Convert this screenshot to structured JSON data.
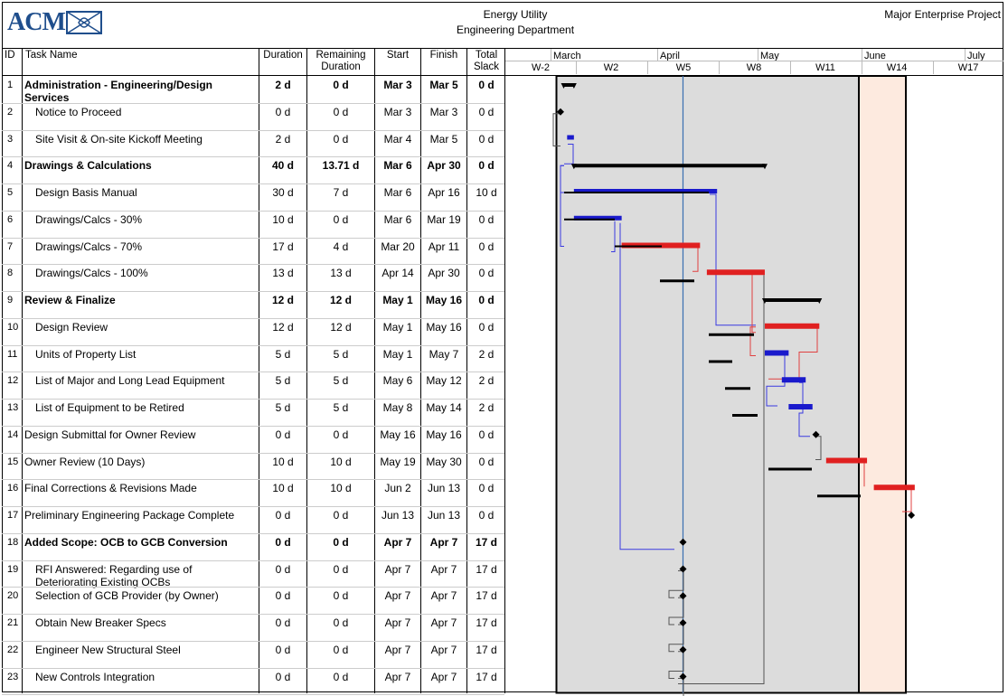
{
  "header": {
    "logo_text": "ACM",
    "title_line1": "Energy Utility",
    "title_line2": "Engineering Department",
    "project": "Major Enterprise Project"
  },
  "columns": {
    "id": "ID",
    "task_name": "Task Name",
    "duration": "Duration",
    "remaining_duration": "Remaining Duration",
    "start": "Start",
    "finish": "Finish",
    "total_slack": "Total Slack"
  },
  "timeline": {
    "months": [
      "March",
      "April",
      "May",
      "June",
      "July"
    ],
    "weeks": [
      "W-2",
      "W2",
      "W5",
      "W8",
      "W11",
      "W14",
      "W17"
    ]
  },
  "colors": {
    "critical": "#e02020",
    "noncritical": "#1a1acc",
    "summary": "#000000",
    "shade": "#dcdcdc",
    "highlight": "#fdeadf",
    "status_line": "#3a6fb0"
  },
  "tasks": [
    {
      "id": "1",
      "name": "Administration - Engineering/Design Services",
      "duration": "2 d",
      "remaining": "0 d",
      "start": "Mar 3",
      "finish": "Mar 5",
      "slack": "0 d",
      "bold": true
    },
    {
      "id": "2",
      "name": "Notice to Proceed",
      "duration": "0 d",
      "remaining": "0 d",
      "start": "Mar 3",
      "finish": "Mar 3",
      "slack": "0 d",
      "bold": false
    },
    {
      "id": "3",
      "name": "Site Visit & On-site Kickoff Meeting",
      "duration": "2 d",
      "remaining": "0 d",
      "start": "Mar 4",
      "finish": "Mar 5",
      "slack": "0 d",
      "bold": false
    },
    {
      "id": "4",
      "name": "Drawings & Calculations",
      "duration": "40 d",
      "remaining": "13.71 d",
      "start": "Mar 6",
      "finish": "Apr 30",
      "slack": "0 d",
      "bold": true
    },
    {
      "id": "5",
      "name": "Design Basis Manual",
      "duration": "30 d",
      "remaining": "7 d",
      "start": "Mar 6",
      "finish": "Apr 16",
      "slack": "10 d",
      "bold": false
    },
    {
      "id": "6",
      "name": "Drawings/Calcs - 30%",
      "duration": "10 d",
      "remaining": "0 d",
      "start": "Mar 6",
      "finish": "Mar 19",
      "slack": "0 d",
      "bold": false
    },
    {
      "id": "7",
      "name": "Drawings/Calcs - 70%",
      "duration": "17 d",
      "remaining": "4 d",
      "start": "Mar 20",
      "finish": "Apr 11",
      "slack": "0 d",
      "bold": false
    },
    {
      "id": "8",
      "name": "Drawings/Calcs - 100%",
      "duration": "13 d",
      "remaining": "13 d",
      "start": "Apr 14",
      "finish": "Apr 30",
      "slack": "0 d",
      "bold": false
    },
    {
      "id": "9",
      "name": "Review & Finalize",
      "duration": "12 d",
      "remaining": "12 d",
      "start": "May 1",
      "finish": "May 16",
      "slack": "0 d",
      "bold": true
    },
    {
      "id": "10",
      "name": "Design Review",
      "duration": "12 d",
      "remaining": "12 d",
      "start": "May 1",
      "finish": "May 16",
      "slack": "0 d",
      "bold": false
    },
    {
      "id": "11",
      "name": "Units of Property List",
      "duration": "5 d",
      "remaining": "5 d",
      "start": "May 1",
      "finish": "May 7",
      "slack": "2 d",
      "bold": false
    },
    {
      "id": "12",
      "name": "List of Major and Long Lead Equipment",
      "duration": "5 d",
      "remaining": "5 d",
      "start": "May 6",
      "finish": "May 12",
      "slack": "2 d",
      "bold": false
    },
    {
      "id": "13",
      "name": "List of Equipment to be Retired",
      "duration": "5 d",
      "remaining": "5 d",
      "start": "May 8",
      "finish": "May 14",
      "slack": "2 d",
      "bold": false
    },
    {
      "id": "14",
      "name": "Design Submittal for Owner Review",
      "duration": "0 d",
      "remaining": "0 d",
      "start": "May 16",
      "finish": "May 16",
      "slack": "0 d",
      "bold": false
    },
    {
      "id": "15",
      "name": "Owner Review (10 Days)",
      "duration": "10 d",
      "remaining": "10 d",
      "start": "May 19",
      "finish": "May 30",
      "slack": "0 d",
      "bold": false
    },
    {
      "id": "16",
      "name": "Final Corrections & Revisions Made",
      "duration": "10 d",
      "remaining": "10 d",
      "start": "Jun 2",
      "finish": "Jun 13",
      "slack": "0 d",
      "bold": false
    },
    {
      "id": "17",
      "name": "Preliminary Engineering Package Complete",
      "duration": "0 d",
      "remaining": "0 d",
      "start": "Jun 13",
      "finish": "Jun 13",
      "slack": "0 d",
      "bold": false
    },
    {
      "id": "18",
      "name": "Added Scope: OCB to GCB Conversion",
      "duration": "0 d",
      "remaining": "0 d",
      "start": "Apr 7",
      "finish": "Apr 7",
      "slack": "17 d",
      "bold": true
    },
    {
      "id": "19",
      "name": "RFI Answered: Regarding use of Deteriorating Existing OCBs",
      "duration": "0 d",
      "remaining": "0 d",
      "start": "Apr 7",
      "finish": "Apr 7",
      "slack": "17 d",
      "bold": false
    },
    {
      "id": "20",
      "name": "Selection of GCB Provider (by Owner)",
      "duration": "0 d",
      "remaining": "0 d",
      "start": "Apr 7",
      "finish": "Apr 7",
      "slack": "17 d",
      "bold": false
    },
    {
      "id": "21",
      "name": "Obtain New Breaker Specs",
      "duration": "0 d",
      "remaining": "0 d",
      "start": "Apr 7",
      "finish": "Apr 7",
      "slack": "17 d",
      "bold": false
    },
    {
      "id": "22",
      "name": "Engineer New Structural Steel",
      "duration": "0 d",
      "remaining": "0 d",
      "start": "Apr 7",
      "finish": "Apr 7",
      "slack": "17 d",
      "bold": false
    },
    {
      "id": "23",
      "name": "New Controls Integration",
      "duration": "0 d",
      "remaining": "0 d",
      "start": "Apr 7",
      "finish": "Apr 7",
      "slack": "17 d",
      "bold": false
    }
  ]
}
